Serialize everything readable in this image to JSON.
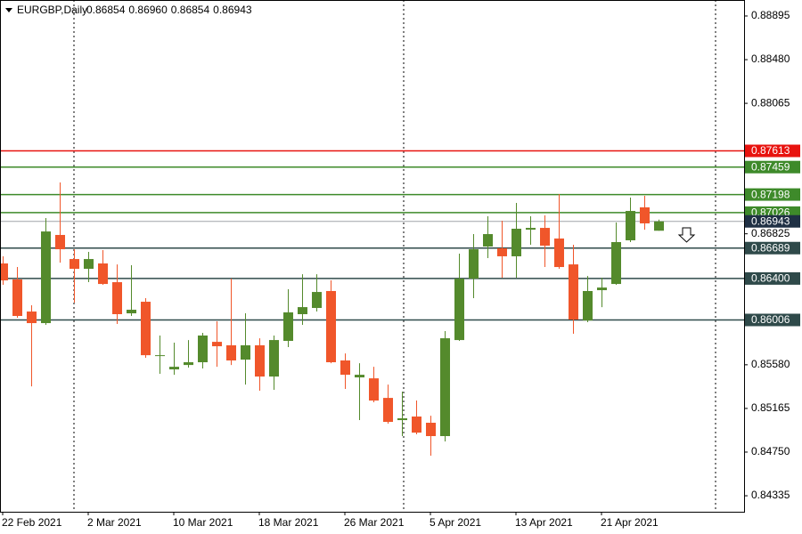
{
  "chart_data": {
    "type": "candlestick",
    "title": "EURGBP,Daily",
    "title_values": [
      0.86854,
      {
        "value": 0.8696,
        "label": "0.86960"
      },
      0.86854,
      0.86943
    ],
    "categories": [
      "22 Feb 2021",
      null,
      null,
      null,
      null,
      null,
      "2 Mar 2021",
      null,
      null,
      null,
      null,
      null,
      "10 Mar 2021",
      null,
      null,
      null,
      null,
      null,
      "18 Mar 2021",
      null,
      null,
      null,
      null,
      null,
      "26 Mar 2021",
      null,
      null,
      null,
      null,
      null,
      "5 Apr 2021",
      null,
      null,
      null,
      null,
      null,
      "13 Apr 2021",
      null,
      null,
      null,
      null,
      null,
      "21 Apr 2021",
      null,
      null,
      null,
      null
    ],
    "open": [
      0.86543,
      0.86391,
      0.86086,
      0.85976,
      0.86814,
      0.86585,
      0.86492,
      0.86543,
      0.86365,
      0.86069,
      0.86179,
      0.85663,
      0.85536,
      0.85578,
      0.85604,
      0.85798,
      0.85765,
      0.85629,
      0.85765,
      0.85468,
      0.85807,
      0.86061,
      0.8612,
      0.86281,
      0.85621,
      0.8546,
      0.85451,
      0.85265,
      0.85054,
      0.85088,
      0.85029,
      0.84902,
      0.85815,
      0.86399,
      0.86704,
      0.86687,
      0.86611,
      0.86864,
      0.86881,
      0.8678,
      0.86534,
      0.86001,
      0.86289,
      0.86348,
      0.86763,
      0.87076,
      0.86854
    ],
    "high": [
      0.86611,
      0.86509,
      0.86145,
      0.86974,
      0.87313,
      0.86678,
      0.86653,
      0.8667,
      0.86534,
      0.86526,
      0.86213,
      0.85858,
      0.8579,
      0.85815,
      0.85883,
      0.85993,
      0.86399,
      0.86069,
      0.85832,
      0.85858,
      0.86298,
      0.86441,
      0.86441,
      0.86382,
      0.85688,
      0.85595,
      0.85561,
      0.85392,
      0.85325,
      0.8524,
      0.85096,
      0.859,
      0.86636,
      0.86822,
      0.86991,
      0.86949,
      0.87118,
      0.86991,
      0.87,
      0.87203,
      0.86721,
      0.86424,
      0.86408,
      0.86932,
      0.87169,
      0.87186,
      0.8696
    ],
    "low": [
      0.8634,
      0.86027,
      0.85375,
      0.85959,
      0.86551,
      0.86171,
      0.86365,
      0.8634,
      0.85968,
      0.86044,
      0.85646,
      0.85494,
      0.85485,
      0.85553,
      0.85545,
      0.85561,
      0.85578,
      0.85392,
      0.85333,
      0.85342,
      0.85748,
      0.85959,
      0.86086,
      0.85595,
      0.8535,
      0.85054,
      0.85223,
      0.8502,
      0.84902,
      0.84919,
      0.84716,
      0.84851,
      0.85807,
      0.86213,
      0.86594,
      0.86408,
      0.86408,
      0.86721,
      0.86509,
      0.86492,
      0.85875,
      0.85985,
      0.86128,
      0.8634,
      0.86746,
      0.86864,
      0.86854
    ],
    "close": [
      0.86382,
      0.86044,
      0.85976,
      0.86847,
      0.86678,
      0.86492,
      0.86585,
      0.86348,
      0.86061,
      0.86103,
      0.85671,
      0.85671,
      0.85561,
      0.85604,
      0.85858,
      0.85756,
      0.85621,
      0.85765,
      0.85468,
      0.85815,
      0.86078,
      0.86128,
      0.86272,
      0.85604,
      0.85485,
      0.85485,
      0.8524,
      0.85037,
      0.85071,
      0.84935,
      0.84902,
      0.85832,
      0.86399,
      0.86678,
      0.86822,
      0.86611,
      0.86873,
      0.86881,
      0.86712,
      0.86509,
      0.8601,
      0.86281,
      0.86314,
      0.86746,
      0.87042,
      0.86924,
      0.86943
    ],
    "up_color": "#548a2c",
    "down_color": "#f0562a",
    "ylim": [
      0.84183,
      0.89047
    ],
    "yticks": [
      0.88895,
      {
        "value": 0.8848,
        "label": "0.88480"
      },
      0.88065,
      0.86825,
      {
        "value": 0.8558,
        "label": "0.85580"
      },
      0.85165,
      {
        "value": 0.8475,
        "label": "0.84750"
      },
      0.84335
    ],
    "levels": [
      {
        "value": 0.87613,
        "color": "#e8130f"
      },
      {
        "value": 0.87459,
        "color": "#3e8a2a"
      },
      {
        "value": 0.87198,
        "color": "#3e8a2a"
      },
      {
        "value": 0.87026,
        "color": "#3e8a2a"
      },
      {
        "value": 0.86689,
        "color": "#2f4a4a"
      },
      {
        "value": 0.864,
        "label": "0.86400",
        "color": "#2f4a4a"
      },
      {
        "value": 0.86006,
        "color": "#2f4a4a"
      }
    ],
    "price_line": {
      "value": 0.86943,
      "color": "#a0a4a8",
      "label_color": "#1f3044"
    }
  }
}
